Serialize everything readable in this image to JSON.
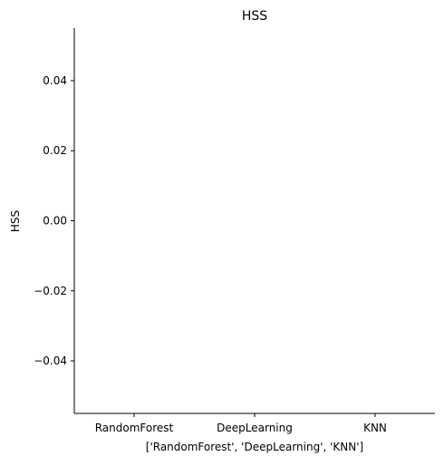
{
  "chart_data": {
    "type": "bar",
    "title": "HSS",
    "xlabel": "['RandomForest', 'DeepLearning', 'KNN']",
    "ylabel": "HSS",
    "categories": [
      "RandomForest",
      "DeepLearning",
      "KNN"
    ],
    "values": [
      null,
      null,
      null
    ],
    "ylim": [
      -0.055,
      0.055
    ],
    "yticks": [
      -0.04,
      -0.02,
      0.0,
      0.02,
      0.04
    ],
    "ytick_labels": [
      "−0.04",
      "−0.02",
      "0.00",
      "0.02",
      "0.04"
    ],
    "grid": false,
    "legend": "none",
    "spines": [
      "left",
      "bottom"
    ]
  }
}
